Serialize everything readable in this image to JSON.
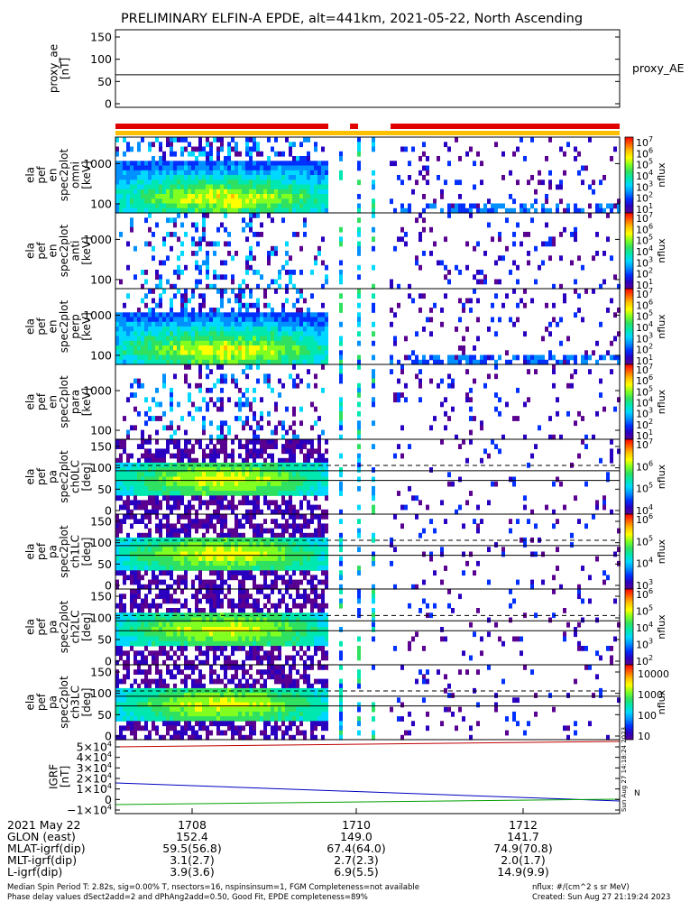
{
  "title": "PRELIMINARY ELFIN-A EPDE, alt=441km, 2021-05-22, North Ascending",
  "panels": [
    {
      "id": "proxy_ae",
      "kind": "line",
      "ylabel_lines": [
        "proxy_ae",
        "[nT]"
      ],
      "ylim": [
        0,
        150
      ],
      "yticks": [
        "150",
        "100",
        "50",
        "0"
      ],
      "right_label": "proxy_AE"
    },
    {
      "id": "en_omni",
      "kind": "spec",
      "ylabel_lines": [
        "ela",
        "pef",
        "en",
        "spec2plot",
        "omni",
        "[keV]"
      ],
      "yticks": [
        "1000",
        "100"
      ],
      "cbar_label": "nflux",
      "cbar_range_exp": [
        1,
        7
      ]
    },
    {
      "id": "en_anti",
      "kind": "spec",
      "ylabel_lines": [
        "ela",
        "pef",
        "en",
        "spec2plot",
        "anti",
        "[keV]"
      ],
      "yticks": [
        "1000",
        "100"
      ],
      "cbar_label": "nflux",
      "cbar_range_exp": [
        1,
        7
      ]
    },
    {
      "id": "en_perp",
      "kind": "spec",
      "ylabel_lines": [
        "ela",
        "pef",
        "en",
        "spec2plot",
        "perp",
        "[keV]"
      ],
      "yticks": [
        "1000",
        "100"
      ],
      "cbar_label": "nflux",
      "cbar_range_exp": [
        1,
        7
      ]
    },
    {
      "id": "en_para",
      "kind": "spec",
      "ylabel_lines": [
        "ela",
        "pef",
        "en",
        "spec2plot",
        "para",
        "[keV]"
      ],
      "yticks": [
        "1000",
        "100"
      ],
      "cbar_label": "nflux",
      "cbar_range_exp": [
        1,
        7
      ]
    },
    {
      "id": "ch0lc",
      "kind": "pa",
      "ylabel_lines": [
        "ela",
        "pef",
        "pa",
        "spec2plot",
        "ch0LC",
        "[deg]"
      ],
      "yticks": [
        "150",
        "100",
        "50",
        "0"
      ],
      "cbar_label": "nflux",
      "cbar_range_exp": [
        4,
        7
      ]
    },
    {
      "id": "ch1lc",
      "kind": "pa",
      "ylabel_lines": [
        "ela",
        "pef",
        "pa",
        "spec2plot",
        "ch1LC",
        "[deg]"
      ],
      "yticks": [
        "150",
        "100",
        "50",
        "0"
      ],
      "cbar_label": "nflux",
      "cbar_range_exp": [
        3,
        6
      ]
    },
    {
      "id": "ch2lc",
      "kind": "pa",
      "ylabel_lines": [
        "ela",
        "pef",
        "pa",
        "spec2plot",
        "ch2LC",
        "[deg]"
      ],
      "yticks": [
        "150",
        "100",
        "50",
        "0"
      ],
      "cbar_label": "nflux",
      "cbar_range_exp": [
        2,
        6
      ]
    },
    {
      "id": "ch3lc",
      "kind": "pa",
      "ylabel_lines": [
        "ela",
        "pef",
        "pa",
        "spec2plot",
        "ch3LC",
        "[deg]"
      ],
      "yticks": [
        "150",
        "100",
        "50",
        "0"
      ],
      "cbar_label": "nflux",
      "cbar_lin_ticks": [
        "10000",
        "1000",
        "100",
        "10"
      ]
    },
    {
      "id": "igrf",
      "kind": "line",
      "ylabel_lines": [
        "IGRF",
        "[nT]"
      ],
      "yticks": [
        {
          "m": "5",
          "e": "4"
        },
        {
          "m": "4",
          "e": "4"
        },
        {
          "m": "3",
          "e": "4"
        },
        {
          "m": "2",
          "e": "4"
        },
        {
          "m": "1",
          "e": "4"
        },
        {
          "m": "0",
          "e": ""
        },
        {
          "m": "−1",
          "e": "4"
        }
      ],
      "right_label": "N"
    }
  ],
  "chart_data": {
    "type": "heatmap",
    "x_ticks": [
      "1708",
      "1710",
      "1712"
    ],
    "proxy_ae_nT": 62,
    "status_bars": {
      "red": "fgm",
      "yellow": "epd"
    },
    "colormap": [
      "#5a0090",
      "#2a00c0",
      "#0030ff",
      "#0090ff",
      "#00d8ff",
      "#00e8b0",
      "#30e060",
      "#80ff20",
      "#ffff00",
      "#ffc000",
      "#ff6000",
      "#ff0000"
    ],
    "igrf_series": [
      {
        "color": "#c00000"
      },
      {
        "color": "#0000c0"
      },
      {
        "color": "#00a000"
      }
    ]
  },
  "footer": {
    "rows": [
      {
        "label": "2021 May 22",
        "values": [
          "1708",
          "1710",
          "1712"
        ]
      },
      {
        "label": "GLON (east)",
        "values": [
          "152.4",
          "149.0",
          "141.7"
        ]
      },
      {
        "label": "MLAT-igrf(dip)",
        "values": [
          "59.5(56.8)",
          "67.4(64.0)",
          "74.9(70.8)"
        ]
      },
      {
        "label": "MLT-igrf(dip)",
        "values": [
          "3.1(2.7)",
          "2.7(2.3)",
          "2.0(1.7)"
        ]
      },
      {
        "label": "L-igrf(dip)",
        "values": [
          "3.9(3.6)",
          "6.9(5.5)",
          "14.9(9.9)"
        ]
      }
    ],
    "note_left_1": "Median Spin Period T: 2.82s, sig=0.00% T, nsectors=16, nspinsinsum=1, FGM Completeness=not available",
    "note_left_2": "Phase delay values dSect2add=2 and dPhAng2add=0.50, Good Fit, EPDE completeness=89%",
    "note_right_1": "nflux: #/(cm^2 s sr MeV)",
    "note_right_2": "Created: Sun Aug 27 21:19:24 2023",
    "side_stamp": "Sun Aug 27 14:18:24 2023"
  }
}
